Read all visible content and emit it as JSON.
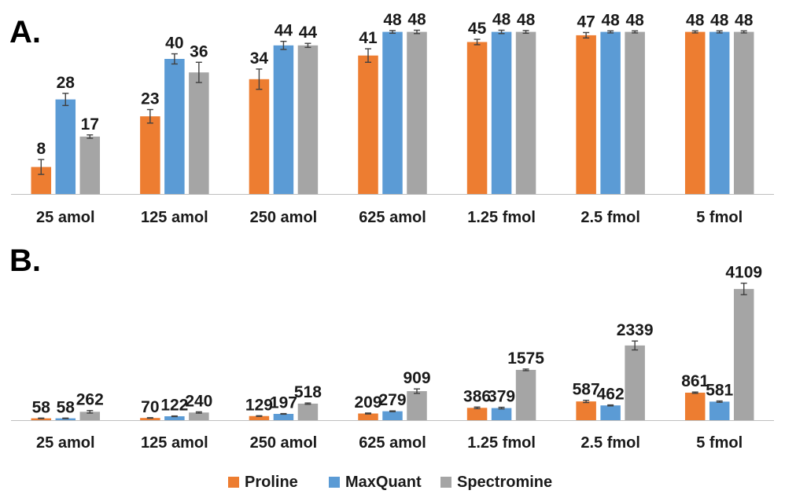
{
  "legend": {
    "items": [
      {
        "label": "Proline",
        "color": "#ED7D31"
      },
      {
        "label": "MaxQuant",
        "color": "#5B9BD5"
      },
      {
        "label": "Spectromine",
        "color": "#A5A5A5"
      }
    ]
  },
  "chart_data": [
    {
      "panel": "A.",
      "type": "bar",
      "categories": [
        "25 amol",
        "125 amol",
        "250 amol",
        "625 amol",
        "1.25 fmol",
        "2.5 fmol",
        "5 fmol"
      ],
      "ylim": [
        0,
        50
      ],
      "series": [
        {
          "name": "Proline",
          "color": "#ED7D31",
          "values": [
            8,
            23,
            34,
            41,
            45,
            47,
            48
          ],
          "errors": [
            2.2,
            2.0,
            3.0,
            2.0,
            0.8,
            0.8,
            0.3
          ],
          "labels": [
            "8",
            "23",
            "34",
            "41",
            "45",
            "47",
            "48"
          ]
        },
        {
          "name": "MaxQuant",
          "color": "#5B9BD5",
          "values": [
            28,
            40,
            44,
            48,
            48,
            48,
            48
          ],
          "errors": [
            1.8,
            1.5,
            1.2,
            0.4,
            0.5,
            0.3,
            0.3
          ],
          "labels": [
            "28",
            "40",
            "44",
            "48",
            "48",
            "48",
            "48"
          ]
        },
        {
          "name": "Spectromine",
          "color": "#A5A5A5",
          "values": [
            17,
            36,
            44,
            48,
            48,
            48,
            48
          ],
          "errors": [
            0.5,
            3.0,
            0.6,
            0.5,
            0.4,
            0.3,
            0.3
          ],
          "labels": [
            "17",
            "36",
            "44",
            "48",
            "48",
            "48",
            "48"
          ]
        }
      ]
    },
    {
      "panel": "B.",
      "type": "bar",
      "categories": [
        "25 amol",
        "125 amol",
        "250 amol",
        "625 amol",
        "1.25 fmol",
        "2.5 fmol",
        "5 fmol"
      ],
      "ylim": [
        0,
        4500
      ],
      "series": [
        {
          "name": "Proline",
          "color": "#ED7D31",
          "values": [
            58,
            70,
            129,
            209,
            386,
            587,
            861
          ],
          "errors": [
            8,
            8,
            10,
            15,
            25,
            35,
            20
          ],
          "labels": [
            "58",
            "70",
            "129",
            "209",
            "386",
            "587",
            "861"
          ]
        },
        {
          "name": "MaxQuant",
          "color": "#5B9BD5",
          "values": [
            58,
            122,
            197,
            279,
            379,
            462,
            581
          ],
          "errors": [
            8,
            10,
            10,
            12,
            25,
            15,
            20
          ],
          "labels": [
            "58",
            "122",
            "197",
            "279",
            "379",
            "462",
            "581"
          ]
        },
        {
          "name": "Spectromine",
          "color": "#A5A5A5",
          "values": [
            262,
            240,
            518,
            909,
            1575,
            2339,
            4109
          ],
          "errors": [
            40,
            20,
            20,
            70,
            25,
            140,
            180
          ],
          "labels": [
            "262",
            "240",
            "518",
            "909",
            "1575",
            "2339",
            "4109"
          ]
        }
      ]
    }
  ]
}
